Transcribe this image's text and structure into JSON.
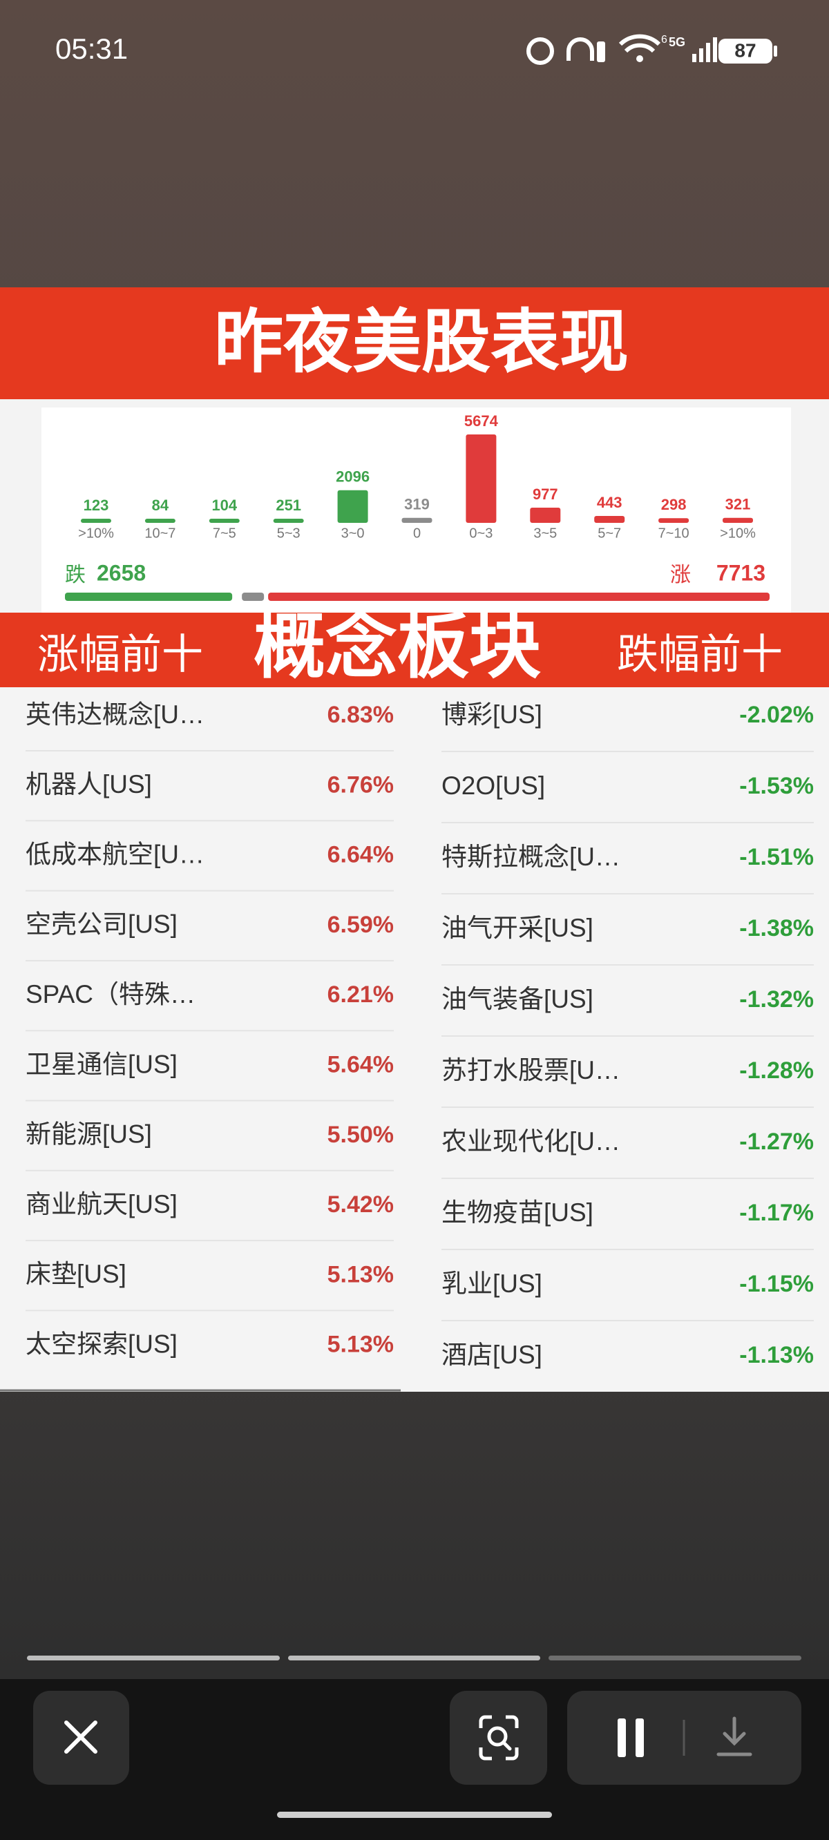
{
  "status_bar": {
    "time": "05:31",
    "wifi_label": "6",
    "network": "5G",
    "battery": "87"
  },
  "header": {
    "title": "昨夜美股表现"
  },
  "chart_data": {
    "type": "bar",
    "categories": [
      ">10%",
      "10~7",
      "7~5",
      "5~3",
      "3~0",
      "0",
      "0~3",
      "3~5",
      "5~7",
      "7~10",
      ">10%"
    ],
    "values": [
      123,
      84,
      104,
      251,
      2096,
      319,
      5674,
      977,
      443,
      298,
      321
    ],
    "colors": [
      "#3fa34d",
      "#3fa34d",
      "#3fa34d",
      "#3fa34d",
      "#3fa34d",
      "#8c8c8c",
      "#e03b3b",
      "#e03b3b",
      "#e03b3b",
      "#e03b3b",
      "#e03b3b"
    ]
  },
  "summary": {
    "down_label": "跌",
    "down": 2658,
    "up_label": "涨",
    "up": 7713
  },
  "section": {
    "left_title": "涨幅前十",
    "title": "概念板块",
    "right_title": "跌幅前十"
  },
  "table": {
    "gainers": [
      [
        "英伟达概念[U…",
        "6.83%"
      ],
      [
        "机器人[US]",
        "6.76%"
      ],
      [
        "低成本航空[U…",
        "6.64%"
      ],
      [
        "空壳公司[US]",
        "6.59%"
      ],
      [
        "SPAC（特殊…",
        "6.21%"
      ],
      [
        "卫星通信[US]",
        "5.64%"
      ],
      [
        "新能源[US]",
        "5.50%"
      ],
      [
        "商业航天[US]",
        "5.42%"
      ],
      [
        "床垫[US]",
        "5.13%"
      ],
      [
        "太空探索[US]",
        "5.13%"
      ]
    ],
    "losers": [
      [
        "博彩[US]",
        "-2.02%"
      ],
      [
        "O2O[US]",
        "-1.53%"
      ],
      [
        "特斯拉概念[U…",
        "-1.51%"
      ],
      [
        "油气开采[US]",
        "-1.38%"
      ],
      [
        "油气装备[US]",
        "-1.32%"
      ],
      [
        "苏打水股票[U…",
        "-1.28%"
      ],
      [
        "农业现代化[U…",
        "-1.27%"
      ],
      [
        "生物疫苗[US]",
        "-1.17%"
      ],
      [
        "乳业[US]",
        "-1.15%"
      ],
      [
        "酒店[US]",
        "-1.13%"
      ]
    ]
  }
}
